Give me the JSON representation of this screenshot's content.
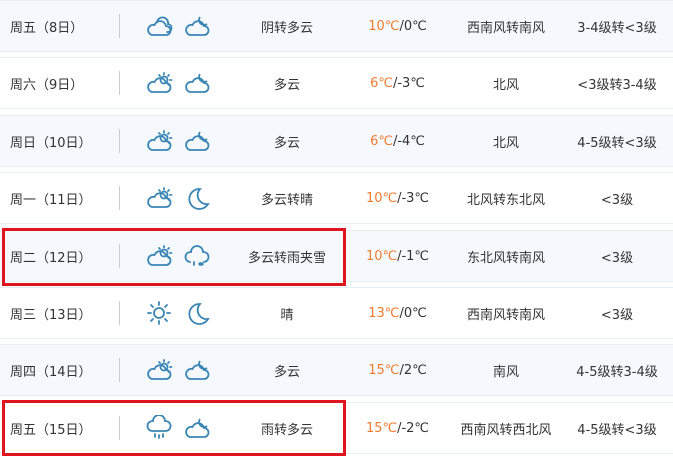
{
  "colors": {
    "high_temp": "#f07b2e",
    "icon": "#3a86b4",
    "highlight": "#e0141e"
  },
  "rows": [
    {
      "day": "周五（8日）",
      "icons": [
        "cloudy-icon",
        "cloud-moon-icon"
      ],
      "desc": "阴转多云",
      "high": "10℃",
      "low": "/0℃",
      "wind": "西南风转南风",
      "level": "3-4级转<3级",
      "highlighted": false
    },
    {
      "day": "周六（9日）",
      "icons": [
        "cloud-sun-icon",
        "cloud-moon-icon"
      ],
      "desc": "多云",
      "high": "6℃",
      "low": "/-3℃",
      "wind": "北风",
      "level": "<3级转3-4级",
      "highlighted": false
    },
    {
      "day": "周日（10日）",
      "icons": [
        "cloud-sun-icon",
        "cloud-moon-icon"
      ],
      "desc": "多云",
      "high": "6℃",
      "low": "/-4℃",
      "wind": "北风",
      "level": "4-5级转<3级",
      "highlighted": false
    },
    {
      "day": "周一（11日）",
      "icons": [
        "cloud-sun-icon",
        "moon-icon"
      ],
      "desc": "多云转晴",
      "high": "10℃",
      "low": "/-3℃",
      "wind": "北风转东北风",
      "level": "<3级",
      "highlighted": false
    },
    {
      "day": "周二（12日）",
      "icons": [
        "cloud-sun-icon",
        "sleet-icon"
      ],
      "desc": "多云转雨夹雪",
      "high": "10℃",
      "low": "/-1℃",
      "wind": "东北风转南风",
      "level": "<3级",
      "highlighted": true
    },
    {
      "day": "周三（13日）",
      "icons": [
        "sun-icon",
        "moon-icon"
      ],
      "desc": "晴",
      "high": "13℃",
      "low": "/0℃",
      "wind": "西南风转南风",
      "level": "<3级",
      "highlighted": false
    },
    {
      "day": "周四（14日）",
      "icons": [
        "cloud-sun-icon",
        "cloud-moon-icon"
      ],
      "desc": "多云",
      "high": "15℃",
      "low": "/2℃",
      "wind": "南风",
      "level": "4-5级转3-4级",
      "highlighted": false
    },
    {
      "day": "周五（15日）",
      "icons": [
        "rain-icon",
        "cloud-moon-icon"
      ],
      "desc": "雨转多云",
      "high": "15℃",
      "low": "/-2℃",
      "wind": "西南风转西北风",
      "level": "4-5级转<3级",
      "highlighted": true
    }
  ]
}
